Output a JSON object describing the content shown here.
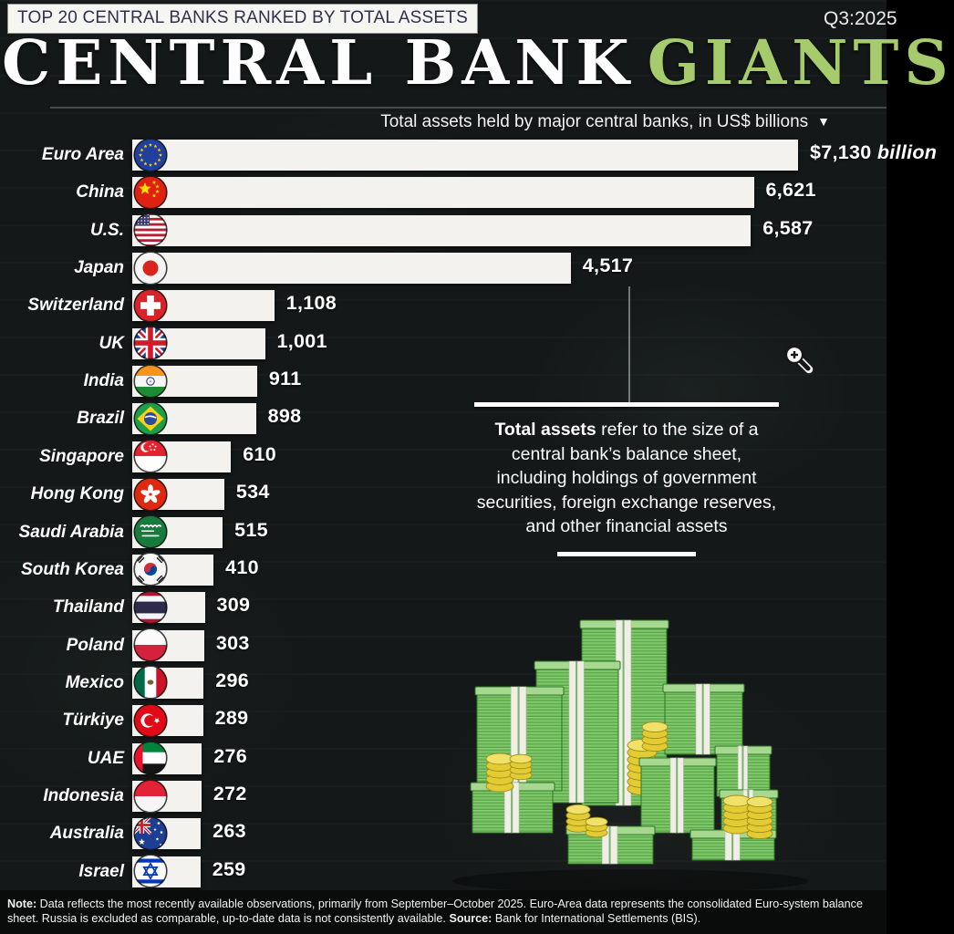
{
  "header": {
    "banner": "TOP 20 CENTRAL BANKS RANKED BY TOTAL ASSETS",
    "quarter": "Q3:2025",
    "title_white": "CENTRAL BANK",
    "title_green": "GIANTS",
    "sort_arrow": "▼"
  },
  "chart_data": {
    "type": "bar",
    "orientation": "horizontal",
    "title": "CENTRAL BANK GIANTS",
    "subtitle": "Total assets held by major central banks, in US$ billions",
    "unit": "US$ billions",
    "xlim": [
      0,
      7130
    ],
    "grid": false,
    "legend": "none",
    "bar_color": "#f3f2ef",
    "categories": [
      "Euro Area",
      "China",
      "U.S.",
      "Japan",
      "Switzerland",
      "UK",
      "India",
      "Brazil",
      "Singapore",
      "Hong Kong",
      "Saudi Arabia",
      "South Korea",
      "Thailand",
      "Poland",
      "Mexico",
      "Türkiye",
      "UAE",
      "Indonesia",
      "Australia",
      "Israel"
    ],
    "values": [
      7130,
      6621,
      6587,
      4517,
      1108,
      1001,
      911,
      898,
      610,
      534,
      515,
      410,
      309,
      303,
      296,
      289,
      276,
      272,
      263,
      259
    ],
    "value_labels": [
      "$7,130",
      "6,621",
      "6,587",
      "4,517",
      "1,108",
      "1,001",
      "911",
      "898",
      "610",
      "534",
      "515",
      "410",
      "309",
      "303",
      "296",
      "289",
      "276",
      "272",
      "263",
      "259"
    ],
    "first_value_suffix": "billion",
    "flag_icons": [
      "euro-area-flag-icon",
      "china-flag-icon",
      "us-flag-icon",
      "japan-flag-icon",
      "switzerland-flag-icon",
      "uk-flag-icon",
      "india-flag-icon",
      "brazil-flag-icon",
      "singapore-flag-icon",
      "hong-kong-flag-icon",
      "saudi-arabia-flag-icon",
      "south-korea-flag-icon",
      "thailand-flag-icon",
      "poland-flag-icon",
      "mexico-flag-icon",
      "turkiye-flag-icon",
      "uae-flag-icon",
      "indonesia-flag-icon",
      "australia-flag-icon",
      "israel-flag-icon"
    ]
  },
  "annotation": {
    "bold": "Total assets",
    "text": " refer to the size of a central bank’s balance sheet, including holdings of government securities, foreign exchange reserves, and other financial assets"
  },
  "footer": {
    "note_label": "Note:",
    "note_body": " Data reflects the most recently available observations, primarily from September–October 2025. Euro-Area data represents the consolidated Euro-system balance sheet. Russia is excluded as comparable, up-to-date data is not consistently available. ",
    "source_label": "Source:",
    "source_body": " Bank for International Settlements (BIS)."
  },
  "colors": {
    "background": "#141818",
    "bar_fill": "#f3f2ef",
    "accent_green": "#a5cb6c",
    "banner_bg": "#f5f5f2",
    "banner_text": "#30304e",
    "footer_bg": "#0a0c0c"
  }
}
